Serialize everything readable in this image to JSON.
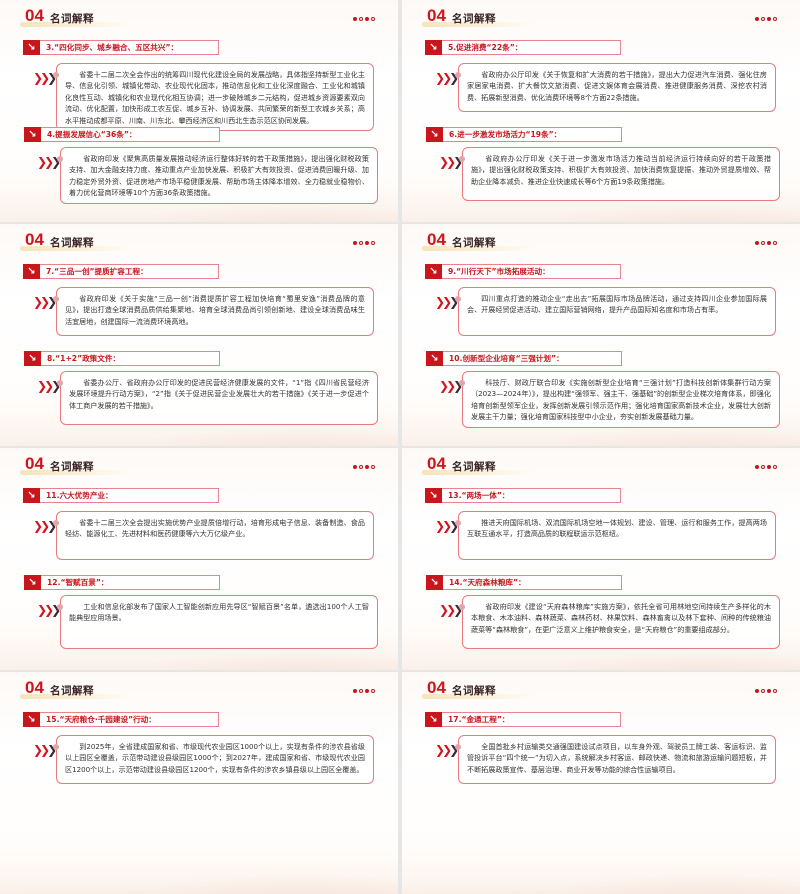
{
  "header": {
    "number": "04",
    "title": "名词解释"
  },
  "colors": {
    "accent": "#c8161d",
    "border": "#e8797f",
    "chevron_dark": "#3d2535"
  },
  "icons": {
    "section_marker": "arrow-down-right-icon",
    "bullet": "triple-chevron-icon",
    "pager": "pagination-dots"
  },
  "slides": [
    {
      "sections": [
        {
          "title": "3.“四化同步、城乡融合、五区共兴”：",
          "body": "省委十二届二次全会作出的统筹四川现代化建设全局的发展战略，具体指坚持新型工业化主导、信息化引领、城镇化带动、农业现代化固本，推动信息化和工业化深度融合、工业化和城镇化良性互动、城镇化和农业现代化相互协调；进一步破除城乡二元结构，促进城乡资源要素双向流动、优化配置，加快形成工农互促、城乡互补、协调发展、共同繁荣的新型工农城乡关系；高水平推动成都平原、川南、川东北、攀西经济区和川西北生态示范区协同发展。"
        },
        {
          "title": "4.提振发展信心“36条”：",
          "body": "省政府印发《聚焦高质量发展推动经济运行整体好转的若干政策措施》，提出强化财税政策支持、加大金融支持力度、推动重点产业加快发展、积极扩大有效投资、促进消费回暖升级、加力稳定外贸外资、促进房地产市场平稳健康发展、帮助市场主体降本增效、全力稳就业稳物价、着力优化营商环境等10个方面36条政策措施。"
        }
      ]
    },
    {
      "sections": [
        {
          "title": "5.促进消费“22条”：",
          "body": "省政府办公厅印发《关于恢复和扩大消费的若干措施》，提出大力促进汽车消费、强化住房家居家电消费、扩大餐饮文旅消费、促进文娱体育会展消费、推进健康服务消费、深挖农村消费、拓展新型消费、优化消费环境等8个方面22条措施。"
        },
        {
          "title": "6.进一步激发市场活力“19条”：",
          "body": "省政府办公厅印发《关于进一步激发市场活力推动当前经济运行持续向好的若干政策措施》，提出强化财税政策支持、积极扩大有效投资、加快消费恢复提振、推动外贸提质增效、帮助企业降本减负、推进企业快速成长等6个方面19条政策措施。"
        }
      ]
    },
    {
      "sections": [
        {
          "title": "7.“三品一创”提质扩容工程：",
          "body": "省政府印发《关于实施“三品一创”消费提质扩容工程加快培育“蜀里安逸”消费品牌的意见》，提出打造全球消费品质供给集聚地、培育全球消费品尚引领创新地、建设全球消费品味生活宜居地，创建国际一流消费环境高地。"
        },
        {
          "title": "8.“1+2”政策文件：",
          "body": "省委办公厅、省政府办公厅印发的促进民营经济健康发展的文件，“1”指《四川省民营经济发展环境提升行动方案》，“2”指《关于促进民营企业发展壮大的若干措施》《关于进一步促进个体工商户发展的若干措施》。"
        }
      ]
    },
    {
      "sections": [
        {
          "title": "9.“川行天下”市场拓展活动：",
          "body": "四川重点打造的推动企业“走出去”拓展国际市场品牌活动，通过支持四川企业参加国际展会、开展经贸促进活动、建立国际营销网络，提升产品国际知名度和市场占有率。"
        },
        {
          "title": "10.创新型企业培育“三强计划”：",
          "body": "科技厅、财政厅联合印发《实施创新型企业培育“三强计划”打造科技创新体集群行动方案（2023—2024年）》，提出构建“强领军、强主干、强基础”的创新型企业梯次培育体系，即强化培育创新型领军企业，发挥创新发展引领示范作用；强化培育国家高新技术企业，发展壮大创新发展主干力量；强化培育国家科技型中小企业，夯实创新发展基础力量。"
        }
      ]
    },
    {
      "sections": [
        {
          "title": "11.六大优势产业：",
          "body": "省委十二届三次全会提出实施优势产业提质倍增行动，培育形成电子信息、装备制造、食品轻纺、能源化工、先进材料和医药健康等六大万亿级产业。"
        },
        {
          "title": "12.“智赋百景”：",
          "body": "工业和信息化部发布了国家人工智能创新应用先导区“智赋百景”名单，遴选出100个人工智能典型应用场景。"
        }
      ]
    },
    {
      "sections": [
        {
          "title": "13.“两场一体”：",
          "body": "推进天府国际机场、双流国际机场空地一体规划、建设、管理、运行和服务工作，提高两场互联互通水平，打造高品质的联程联运示范枢纽。"
        },
        {
          "title": "14.“天府森林粮库”：",
          "body": "省政府印发《建设“天府森林粮库”实施方案》，依托全省可用林地空间持续生产多样化的木本粮食、木本油料、森林蔬菜、森林药材、林果饮料、森林畜禽以及林下套种、间种的传统粮油蔬菜等“森林粮食”，在更广泛意义上维护粮食安全，是“天府粮仓”的重要组成部分。"
        }
      ]
    },
    {
      "sections": [
        {
          "title": "15.“天府粮仓·千园建设”行动：",
          "body": "到2025年，全省建成国家和省、市级现代农业园区1000个以上，实现有条件的涉农县省级以上园区全覆盖，示范带动建设县级园区1000个；到2027年，建成国家和省、市级现代农业园区1200个以上，示范带动建设县级园区1200个，实现有条件的涉农乡镇县级以上园区全覆盖。"
        }
      ]
    },
    {
      "sections": [
        {
          "title": "17.“金通工程”：",
          "body": "全国首批乡村运输类交通强国建设试点项目，以车身外观、驾驶员工牌工装、客运标识、监管投诉平台“四个统一”为切入点，系统解决乡村客运、邮政快递、物流和旅游运输问题短板，并不断拓展政策宣传、基层治理、商业开发等功能的综合性运输项目。"
        }
      ]
    }
  ]
}
